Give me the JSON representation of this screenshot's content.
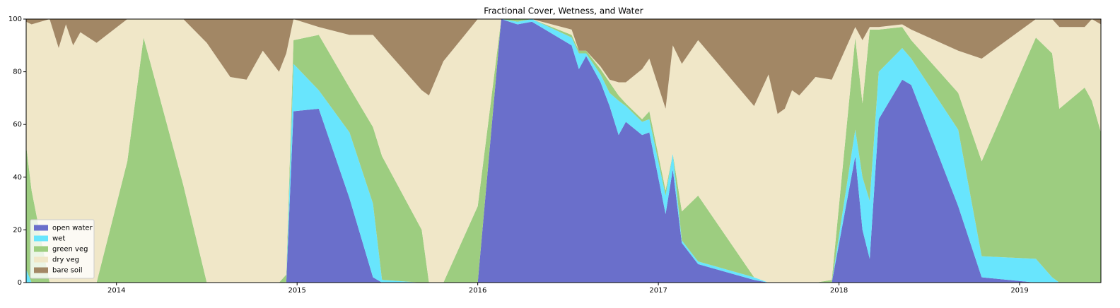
{
  "chart_data": {
    "type": "stacked_area",
    "title": "Fractional Cover, Wetness, and Water",
    "x": [
      2013.5,
      2013.53,
      2013.63,
      2013.68,
      2013.72,
      2013.76,
      2013.8,
      2013.89,
      2014.06,
      2014.15,
      2014.37,
      2014.5,
      2014.63,
      2014.72,
      2014.81,
      2014.9,
      2014.94,
      2014.98,
      2015.12,
      2015.29,
      2015.42,
      2015.47,
      2015.69,
      2015.73,
      2015.81,
      2016.0,
      2016.13,
      2016.22,
      2016.3,
      2016.52,
      2016.56,
      2016.6,
      2016.68,
      2016.73,
      2016.78,
      2016.82,
      2016.91,
      2016.95,
      2017.04,
      2017.08,
      2017.13,
      2017.22,
      2017.53,
      2017.61,
      2017.66,
      2017.7,
      2017.74,
      2017.78,
      2017.87,
      2017.96,
      2018.09,
      2018.13,
      2018.17,
      2018.22,
      2018.35,
      2018.4,
      2018.66,
      2018.79,
      2019.09,
      2019.18,
      2019.22,
      2019.36,
      2019.4,
      2019.45
    ],
    "series": [
      {
        "name": "open water",
        "color": "#6a6fcb",
        "values": [
          0,
          0,
          0,
          0,
          0,
          0,
          0,
          0,
          0,
          0,
          0,
          0,
          0,
          0,
          0,
          0,
          0,
          65,
          66,
          32,
          2,
          0,
          0,
          0,
          0,
          0,
          100,
          98,
          99,
          90,
          81,
          86,
          76,
          67,
          56,
          61,
          56,
          57,
          26,
          43,
          15,
          7,
          1,
          0,
          0,
          0,
          0,
          0,
          0,
          0,
          48,
          20,
          9,
          62,
          77,
          75,
          29,
          2,
          0,
          0,
          0,
          0,
          0,
          0
        ]
      },
      {
        "name": "wet",
        "color": "#68e5fd",
        "values": [
          5,
          0,
          0,
          0,
          0,
          0,
          0,
          0,
          0,
          0,
          0,
          0,
          0,
          0,
          0,
          0,
          0,
          18,
          7,
          25,
          28,
          1,
          0,
          0,
          0,
          0,
          0,
          1,
          1,
          3,
          6,
          1,
          3,
          5,
          13,
          6,
          5,
          5,
          7,
          6,
          1,
          1,
          1,
          0,
          0,
          0,
          0,
          0,
          0,
          0,
          10,
          20,
          22,
          18,
          12,
          10,
          29,
          8,
          9,
          2,
          0,
          0,
          0,
          0
        ]
      },
      {
        "name": "green veg",
        "color": "#9dcd80",
        "values": [
          47,
          35,
          0,
          0,
          0,
          0,
          0,
          0,
          46,
          93,
          37,
          0,
          0,
          0,
          0,
          0,
          3,
          9,
          21,
          17,
          29,
          47,
          20,
          0,
          0,
          29,
          0,
          1,
          0,
          1,
          1,
          1,
          2,
          4,
          2,
          1,
          1,
          3,
          2,
          0,
          11,
          25,
          0,
          0,
          0,
          0,
          0,
          0,
          0,
          1,
          35,
          28,
          65,
          16,
          8,
          7,
          14,
          36,
          84,
          85,
          66,
          74,
          69,
          57
        ]
      },
      {
        "name": "dry veg",
        "color": "#f0e7c8",
        "values": [
          47,
          63,
          100,
          89,
          98,
          90,
          95,
          91,
          54,
          7,
          63,
          91,
          78,
          77,
          88,
          80,
          84,
          8,
          3,
          20,
          35,
          42,
          53,
          71,
          84,
          71,
          0,
          0,
          0,
          2,
          0,
          0,
          1,
          1,
          5,
          8,
          19,
          20,
          31,
          41,
          56,
          59,
          65,
          79,
          64,
          66,
          73,
          71,
          78,
          76,
          4,
          24,
          1,
          1,
          1,
          4,
          16,
          39,
          7,
          13,
          31,
          23,
          31,
          41
        ]
      },
      {
        "name": "bare soil",
        "color": "#a28765",
        "values": [
          1,
          2,
          0,
          11,
          2,
          10,
          5,
          9,
          0,
          0,
          0,
          9,
          22,
          23,
          12,
          20,
          13,
          0,
          3,
          6,
          6,
          10,
          27,
          29,
          16,
          0,
          0,
          0,
          0,
          4,
          12,
          12,
          18,
          23,
          24,
          24,
          19,
          15,
          34,
          10,
          17,
          8,
          33,
          21,
          36,
          34,
          27,
          29,
          22,
          23,
          3,
          8,
          3,
          3,
          2,
          4,
          12,
          15,
          0,
          0,
          3,
          3,
          0,
          2
        ]
      }
    ],
    "xlim": [
      2013.5,
      2019.45
    ],
    "xticks": [
      2014,
      2015,
      2016,
      2017,
      2018,
      2019
    ],
    "ylim": [
      0,
      100
    ],
    "yticks": [
      0,
      20,
      40,
      60,
      80,
      100
    ],
    "legend": "lower left"
  }
}
